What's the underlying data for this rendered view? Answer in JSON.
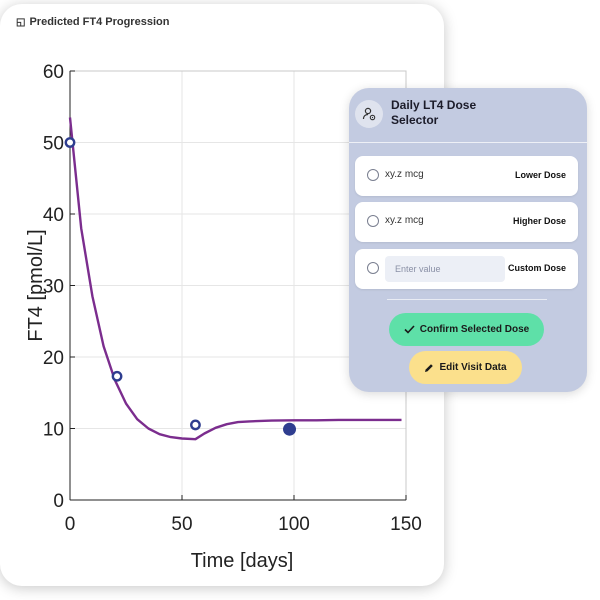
{
  "chart_title": "Predicted FT4 Progression",
  "chart_title_icon": "chart-icon",
  "chart_data": {
    "type": "line",
    "xlabel": "Time [days]",
    "ylabel": "FT4 [pmol/L]",
    "xlim": [
      0,
      150
    ],
    "ylim": [
      0,
      60
    ],
    "xticks": [
      0,
      50,
      100,
      150
    ],
    "yticks": [
      0,
      10,
      20,
      30,
      40,
      50,
      60
    ],
    "grid": true,
    "line_color": "#7b2d8e",
    "marker_color": "#2e3d8f",
    "series": [
      {
        "type": "line",
        "x": [
          0,
          5,
          10,
          15,
          20,
          25,
          30,
          35,
          40,
          45,
          50,
          56,
          60,
          65,
          70,
          75,
          80,
          90,
          100,
          110,
          120,
          130,
          140,
          148
        ],
        "y": [
          53.5,
          38,
          28.5,
          21.5,
          16.8,
          13.5,
          11.3,
          10,
          9.2,
          8.8,
          8.6,
          8.5,
          9.3,
          10.1,
          10.6,
          10.9,
          11.0,
          11.1,
          11.15,
          11.15,
          11.2,
          11.2,
          11.2,
          11.2
        ]
      },
      {
        "type": "scatter",
        "x": [
          0,
          21,
          56
        ],
        "y": [
          50,
          17.3,
          10.5
        ],
        "marker": "open-circle"
      },
      {
        "type": "scatter",
        "x": [
          98
        ],
        "y": [
          9.9
        ],
        "marker": "filled-circle"
      }
    ]
  },
  "panel": {
    "title": "Daily LT4 Dose Selector",
    "icon": "user-settings-icon",
    "options": [
      {
        "value": "xy.z mcg",
        "label": "Lower Dose"
      },
      {
        "value": "xy.z mcg",
        "label": "Higher Dose"
      }
    ],
    "custom": {
      "placeholder": "Enter value",
      "label": "Custom Dose"
    },
    "confirm_label": "Confirm Selected Dose",
    "edit_label": "Edit Visit Data",
    "colors": {
      "panel_bg": "#c3cbe1",
      "confirm_bg": "#5ee0a8",
      "edit_bg": "#fbe08c"
    }
  }
}
